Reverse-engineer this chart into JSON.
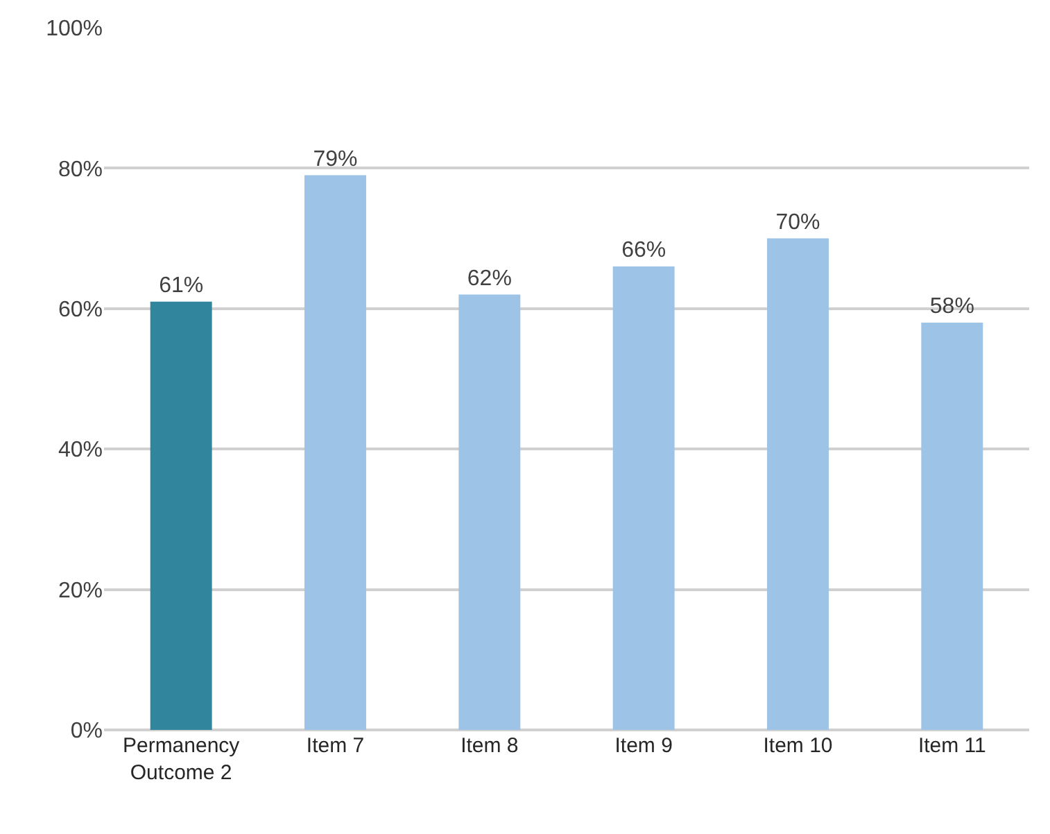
{
  "chart_data": {
    "type": "bar",
    "categories": [
      "Permanency Outcome 2",
      "Item 7",
      "Item 8",
      "Item 9",
      "Item 10",
      "Item 11"
    ],
    "values": [
      61,
      79,
      62,
      66,
      70,
      58
    ],
    "colors": [
      "#31859c",
      "#9dc3e6",
      "#9dc3e6",
      "#9dc3e6",
      "#9dc3e6",
      "#9dc3e6"
    ],
    "value_labels": [
      "61%",
      "79%",
      "62%",
      "66%",
      "70%",
      "58%"
    ],
    "ylim": [
      0,
      100
    ],
    "yticks": [
      {
        "value": 0,
        "label": "0%"
      },
      {
        "value": 20,
        "label": "20%"
      },
      {
        "value": 40,
        "label": "40%"
      },
      {
        "value": 60,
        "label": "60%"
      },
      {
        "value": 80,
        "label": "80%"
      },
      {
        "value": 100,
        "label": "100%"
      }
    ],
    "grid": "y"
  }
}
